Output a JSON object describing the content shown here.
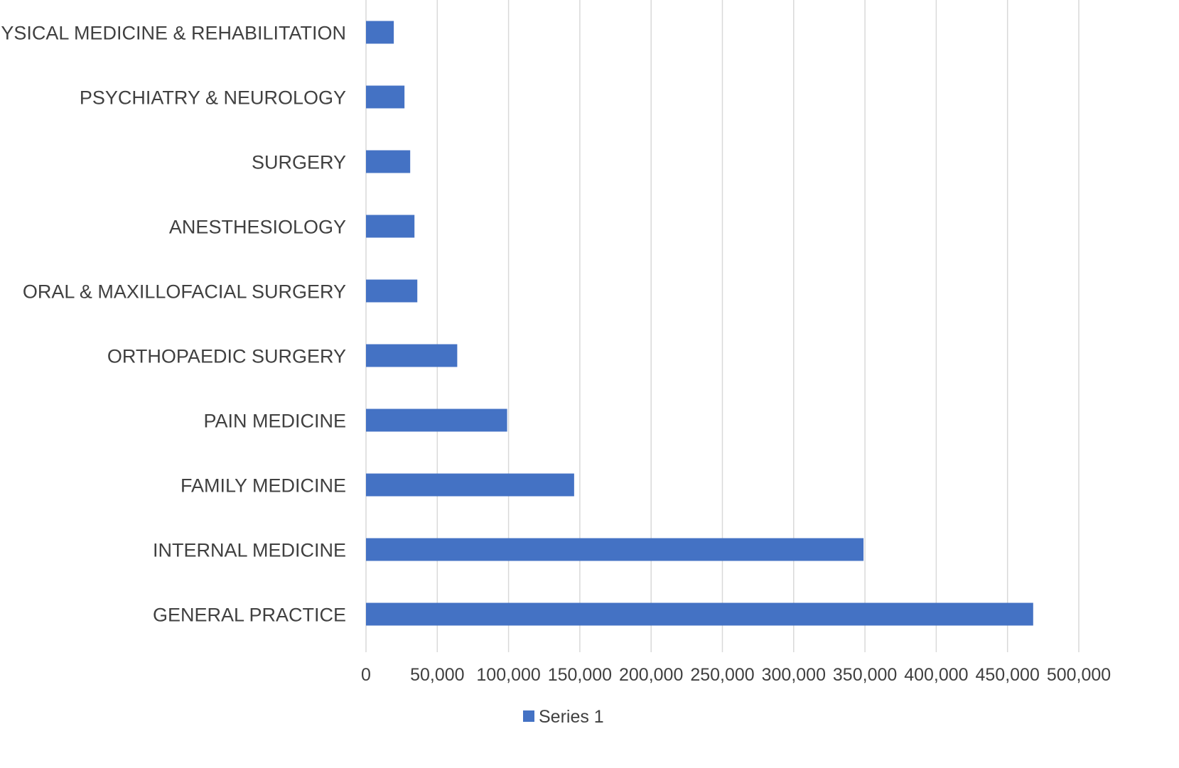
{
  "chart_data": {
    "type": "bar",
    "orientation": "horizontal",
    "categories": [
      "GENERAL PRACTICE",
      "INTERNAL MEDICINE",
      "FAMILY MEDICINE",
      "PAIN MEDICINE",
      "ORTHOPAEDIC SURGERY",
      "ORAL & MAXILLOFACIAL SURGERY",
      "ANESTHESIOLOGY",
      "SURGERY",
      "PSYCHIATRY & NEUROLOGY",
      "PHYSICAL MEDICINE & REHABILITATION"
    ],
    "series": [
      {
        "name": "Series 1",
        "color": "#4472C4",
        "values": [
          468000,
          349000,
          146000,
          99000,
          64000,
          36000,
          34000,
          31000,
          27000,
          19500
        ]
      }
    ],
    "xlim": [
      0,
      500000
    ],
    "xticks": [
      0,
      50000,
      100000,
      150000,
      200000,
      250000,
      300000,
      350000,
      400000,
      450000,
      500000
    ],
    "xtick_labels": [
      "0",
      "50,000",
      "100,000",
      "150,000",
      "200,000",
      "250,000",
      "300,000",
      "350,000",
      "400,000",
      "450,000",
      "500,000"
    ],
    "title": "",
    "xlabel": "",
    "ylabel": "",
    "grid": "vertical",
    "legend": "bottom",
    "colors": {
      "bar": "#4472C4",
      "grid": "#D9D9D9",
      "text": "#404040"
    }
  }
}
